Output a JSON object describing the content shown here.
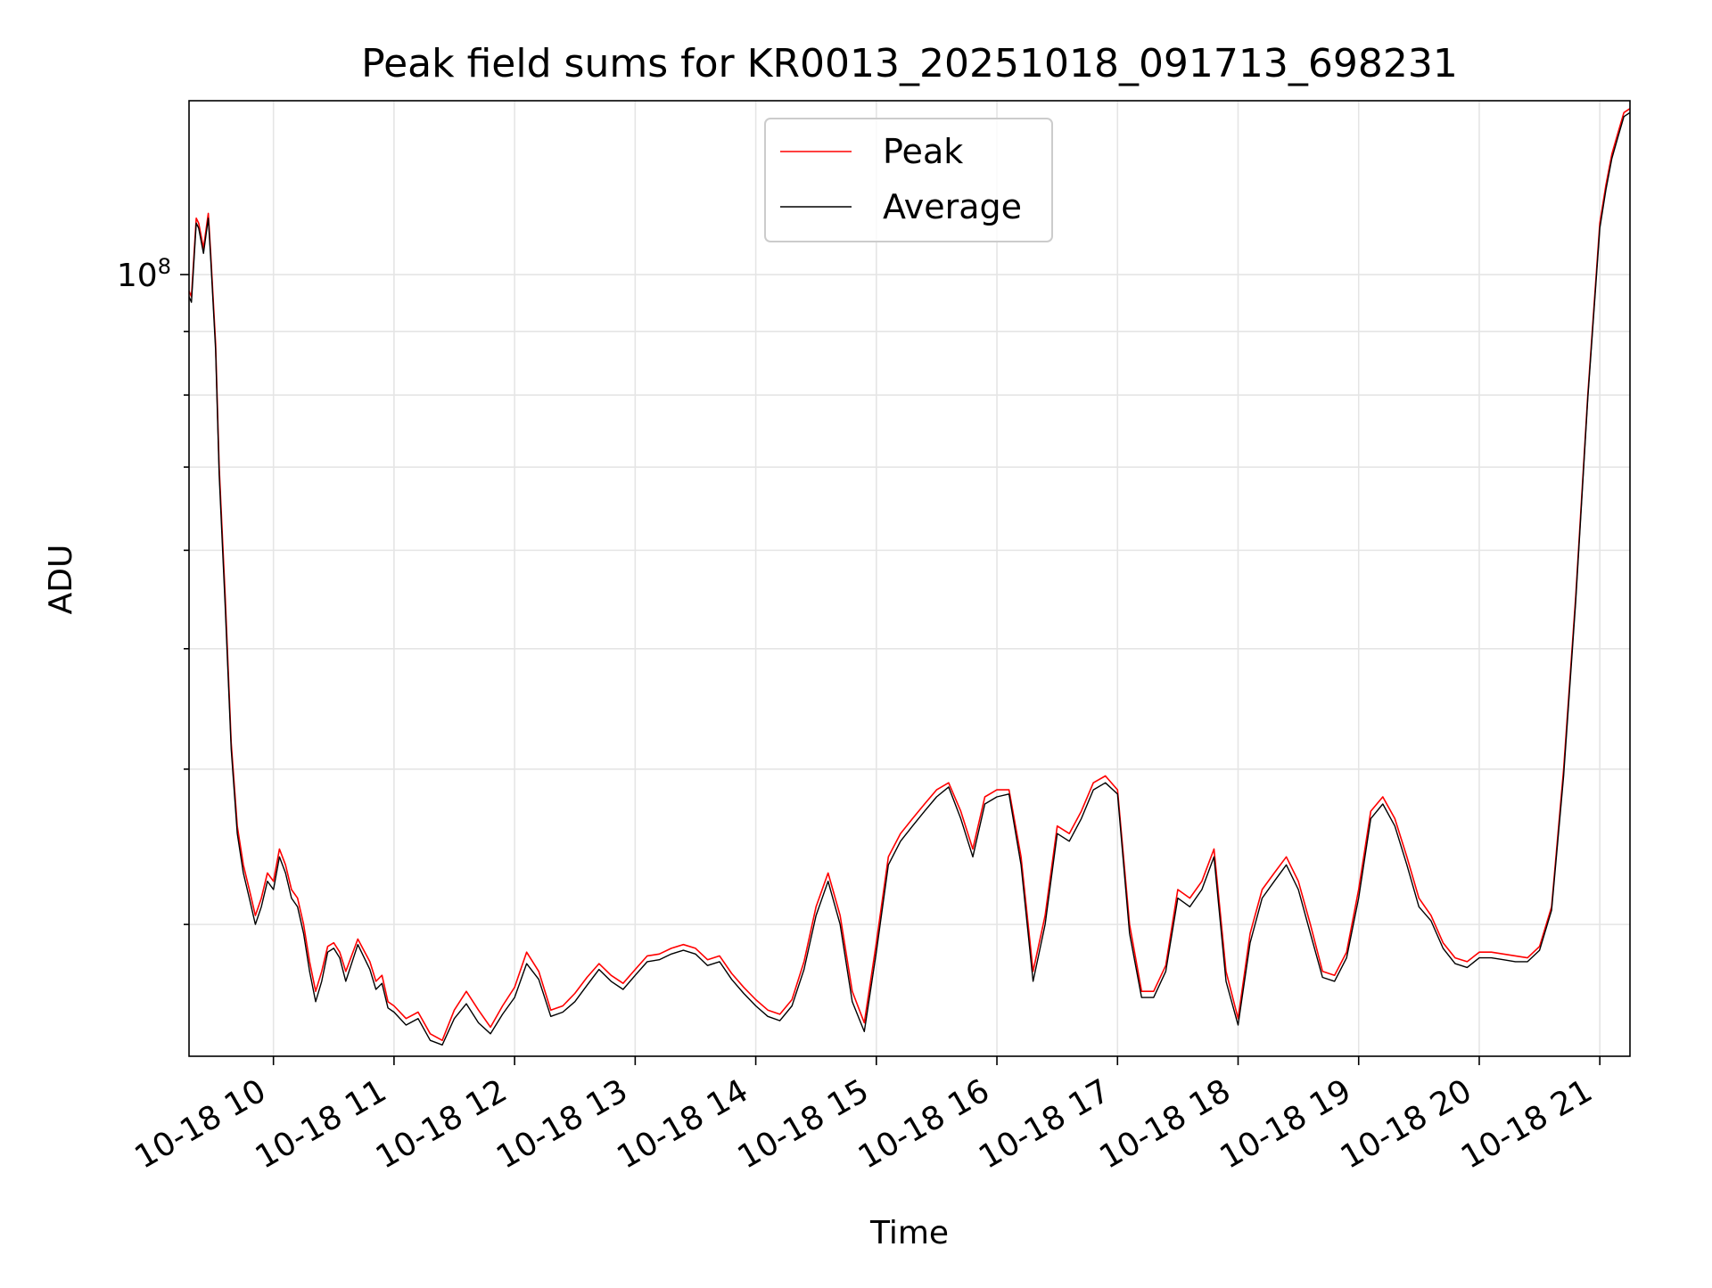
{
  "chart_data": {
    "type": "line",
    "title": "Peak field sums for KR0013_20251018_091713_698231",
    "xlabel": "Time",
    "ylabel": "ADU",
    "yscale": "log",
    "ylim": [
      23500000,
      138000000
    ],
    "xlim_hours": [
      9.3,
      21.25
    ],
    "grid": true,
    "legend_position": "upper-center",
    "x_ticks": [
      {
        "hour": 10,
        "label": "10-18 10"
      },
      {
        "hour": 11,
        "label": "10-18 11"
      },
      {
        "hour": 12,
        "label": "10-18 12"
      },
      {
        "hour": 13,
        "label": "10-18 13"
      },
      {
        "hour": 14,
        "label": "10-18 14"
      },
      {
        "hour": 15,
        "label": "10-18 15"
      },
      {
        "hour": 16,
        "label": "10-18 16"
      },
      {
        "hour": 17,
        "label": "10-18 17"
      },
      {
        "hour": 18,
        "label": "10-18 18"
      },
      {
        "hour": 19,
        "label": "10-18 19"
      },
      {
        "hour": 20,
        "label": "10-18 20"
      },
      {
        "hour": 21,
        "label": "10-18 21"
      }
    ],
    "y_major_ticks": [
      {
        "value": 100000000,
        "base": "10",
        "exp": "8"
      }
    ],
    "y_minor_ticks": [
      30000000,
      40000000,
      50000000,
      60000000,
      70000000,
      80000000,
      90000000
    ],
    "series": [
      {
        "name": "Peak",
        "color": "#ff0000",
        "x_hours": [
          9.3,
          9.32,
          9.36,
          9.38,
          9.42,
          9.46,
          9.48,
          9.52,
          9.55,
          9.6,
          9.65,
          9.7,
          9.75,
          9.8,
          9.85,
          9.9,
          9.95,
          10.0,
          10.05,
          10.1,
          10.15,
          10.2,
          10.25,
          10.3,
          10.35,
          10.4,
          10.45,
          10.5,
          10.55,
          10.6,
          10.7,
          10.8,
          10.85,
          10.9,
          10.95,
          11.0,
          11.1,
          11.2,
          11.3,
          11.4,
          11.5,
          11.6,
          11.7,
          11.8,
          11.9,
          12.0,
          12.1,
          12.2,
          12.3,
          12.4,
          12.5,
          12.6,
          12.7,
          12.8,
          12.9,
          13.0,
          13.1,
          13.2,
          13.3,
          13.4,
          13.5,
          13.6,
          13.7,
          13.8,
          13.9,
          14.0,
          14.1,
          14.2,
          14.3,
          14.4,
          14.5,
          14.6,
          14.7,
          14.8,
          14.9,
          15.0,
          15.1,
          15.2,
          15.3,
          15.4,
          15.5,
          15.6,
          15.7,
          15.8,
          15.9,
          16.0,
          16.1,
          16.2,
          16.3,
          16.4,
          16.5,
          16.6,
          16.7,
          16.8,
          16.9,
          17.0,
          17.1,
          17.2,
          17.3,
          17.4,
          17.5,
          17.6,
          17.7,
          17.8,
          17.9,
          18.0,
          18.1,
          18.2,
          18.3,
          18.4,
          18.5,
          18.6,
          18.7,
          18.8,
          18.9,
          19.0,
          19.1,
          19.2,
          19.3,
          19.4,
          19.5,
          19.6,
          19.7,
          19.8,
          19.9,
          20.0,
          20.1,
          20.2,
          20.3,
          20.4,
          20.5,
          20.6,
          20.7,
          20.8,
          20.9,
          21.0,
          21.05,
          21.1,
          21.15,
          21.2,
          21.25
        ],
        "values": [
          97000000,
          96000000,
          111000000,
          110000000,
          105000000,
          112000000,
          104000000,
          88000000,
          70000000,
          55000000,
          42000000,
          36000000,
          33500000,
          32000000,
          30500000,
          31500000,
          33000000,
          32500000,
          34500000,
          33500000,
          32000000,
          31500000,
          30000000,
          28000000,
          26500000,
          27500000,
          28800000,
          29000000,
          28500000,
          27500000,
          29200000,
          28000000,
          27000000,
          27300000,
          26000000,
          25800000,
          25200000,
          25500000,
          24500000,
          24200000,
          25600000,
          26500000,
          25600000,
          24800000,
          25800000,
          26700000,
          28500000,
          27500000,
          25600000,
          25800000,
          26400000,
          27200000,
          27900000,
          27300000,
          26900000,
          27600000,
          28300000,
          28400000,
          28700000,
          28900000,
          28700000,
          28100000,
          28300000,
          27400000,
          26700000,
          26100000,
          25600000,
          25400000,
          26100000,
          28000000,
          31000000,
          33000000,
          30500000,
          26500000,
          25000000,
          29000000,
          34000000,
          35500000,
          36500000,
          37500000,
          38500000,
          39000000,
          37000000,
          34500000,
          38000000,
          38500000,
          38500000,
          34000000,
          27500000,
          30500000,
          36000000,
          35500000,
          37000000,
          39000000,
          39500000,
          38500000,
          30000000,
          26500000,
          26500000,
          27800000,
          32000000,
          31500000,
          32500000,
          34500000,
          27500000,
          25200000,
          29500000,
          32000000,
          33000000,
          34000000,
          32500000,
          30000000,
          27500000,
          27300000,
          28500000,
          32000000,
          37000000,
          38000000,
          36500000,
          34000000,
          31500000,
          30500000,
          29000000,
          28200000,
          28000000,
          28500000,
          28500000,
          28400000,
          28300000,
          28200000,
          28800000,
          31000000,
          40000000,
          55000000,
          80000000,
          110000000,
          118000000,
          125000000,
          130000000,
          135000000,
          136000000
        ]
      },
      {
        "name": "Average",
        "color": "#000000",
        "x_hours": [
          9.3,
          9.32,
          9.36,
          9.38,
          9.42,
          9.46,
          9.48,
          9.52,
          9.55,
          9.6,
          9.65,
          9.7,
          9.75,
          9.8,
          9.85,
          9.9,
          9.95,
          10.0,
          10.05,
          10.1,
          10.15,
          10.2,
          10.25,
          10.3,
          10.35,
          10.4,
          10.45,
          10.5,
          10.55,
          10.6,
          10.7,
          10.8,
          10.85,
          10.9,
          10.95,
          11.0,
          11.1,
          11.2,
          11.3,
          11.4,
          11.5,
          11.6,
          11.7,
          11.8,
          11.9,
          12.0,
          12.1,
          12.2,
          12.3,
          12.4,
          12.5,
          12.6,
          12.7,
          12.8,
          12.9,
          13.0,
          13.1,
          13.2,
          13.3,
          13.4,
          13.5,
          13.6,
          13.7,
          13.8,
          13.9,
          14.0,
          14.1,
          14.2,
          14.3,
          14.4,
          14.5,
          14.6,
          14.7,
          14.8,
          14.9,
          15.0,
          15.1,
          15.2,
          15.3,
          15.4,
          15.5,
          15.6,
          15.7,
          15.8,
          15.9,
          16.0,
          16.1,
          16.2,
          16.3,
          16.4,
          16.5,
          16.6,
          16.7,
          16.8,
          16.9,
          17.0,
          17.1,
          17.2,
          17.3,
          17.4,
          17.5,
          17.6,
          17.7,
          17.8,
          17.9,
          18.0,
          18.1,
          18.2,
          18.3,
          18.4,
          18.5,
          18.6,
          18.7,
          18.8,
          18.9,
          19.0,
          19.1,
          19.2,
          19.3,
          19.4,
          19.5,
          19.6,
          19.7,
          19.8,
          19.9,
          20.0,
          20.1,
          20.2,
          20.3,
          20.4,
          20.5,
          20.6,
          20.7,
          20.8,
          20.9,
          21.0,
          21.05,
          21.1,
          21.15,
          21.2,
          21.25
        ],
        "values": [
          96000000,
          95000000,
          110000000,
          109000000,
          104000000,
          111000000,
          103000000,
          87000000,
          69000000,
          54000000,
          41500000,
          35500000,
          33000000,
          31500000,
          30000000,
          31000000,
          32500000,
          32000000,
          34000000,
          33000000,
          31500000,
          31000000,
          29500000,
          27500000,
          26000000,
          27000000,
          28500000,
          28700000,
          28200000,
          27000000,
          28900000,
          27600000,
          26600000,
          26900000,
          25700000,
          25500000,
          24900000,
          25200000,
          24200000,
          24000000,
          25200000,
          25900000,
          25000000,
          24500000,
          25400000,
          26200000,
          27900000,
          27100000,
          25300000,
          25500000,
          26000000,
          26800000,
          27600000,
          27000000,
          26600000,
          27300000,
          28000000,
          28100000,
          28400000,
          28600000,
          28400000,
          27800000,
          28000000,
          27100000,
          26400000,
          25800000,
          25300000,
          25100000,
          25800000,
          27600000,
          30500000,
          32500000,
          30000000,
          26000000,
          24600000,
          28500000,
          33500000,
          35000000,
          36000000,
          37000000,
          38000000,
          38700000,
          36500000,
          34000000,
          37500000,
          38000000,
          38200000,
          33500000,
          27000000,
          30000000,
          35500000,
          35000000,
          36500000,
          38500000,
          39000000,
          38200000,
          29500000,
          26200000,
          26200000,
          27500000,
          31500000,
          31000000,
          32000000,
          34000000,
          27000000,
          24900000,
          29000000,
          31500000,
          32500000,
          33500000,
          32000000,
          29500000,
          27200000,
          27000000,
          28200000,
          31500000,
          36500000,
          37500000,
          36000000,
          33500000,
          31000000,
          30200000,
          28700000,
          27900000,
          27700000,
          28200000,
          28200000,
          28100000,
          28000000,
          28000000,
          28600000,
          30800000,
          39500000,
          54500000,
          79500000,
          109000000,
          117000000,
          124000000,
          129000000,
          134000000,
          135000000
        ]
      }
    ]
  }
}
